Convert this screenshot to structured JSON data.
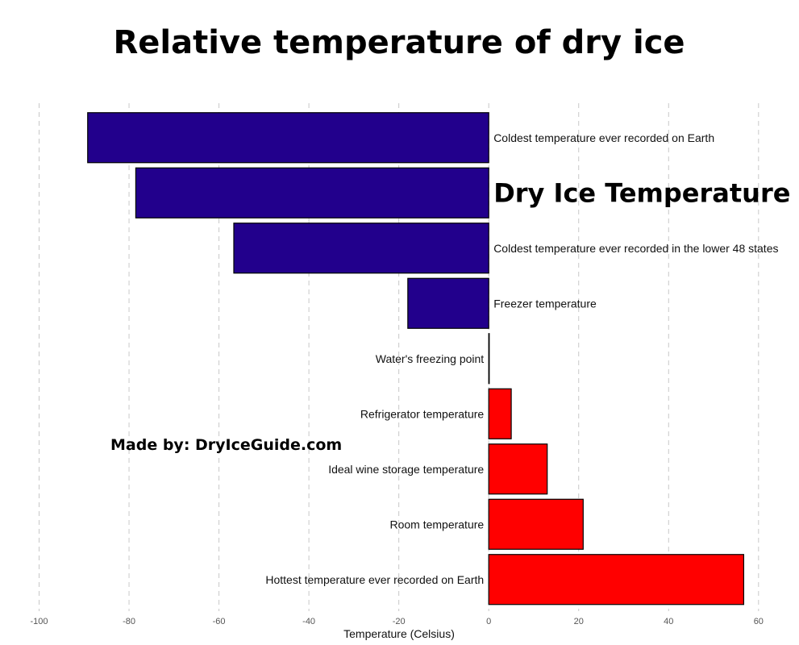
{
  "chart_data": {
    "type": "bar",
    "orientation": "horizontal",
    "title": "Relative temperature of dry ice",
    "xlabel": "Temperature (Celsius)",
    "ylabel": "",
    "xlim": [
      -100,
      62
    ],
    "xticks": [
      -100,
      -80,
      -60,
      -40,
      -20,
      0,
      20,
      40,
      60
    ],
    "grid": "vertical dashed",
    "annotation": "Made by: DryIceGuide.com",
    "colors": {
      "negative": "#22008c",
      "positive": "#ff0000",
      "outline": "#000000"
    },
    "categories": [
      "Coldest temperature ever recorded on Earth",
      "Dry Ice Temperature",
      "Coldest temperature ever recorded in the lower 48 states",
      "Freezer temperature",
      "Water's freezing point",
      "Refrigerator temperature",
      "Ideal wine storage temperature",
      "Room temperature",
      "Hottest temperature ever recorded on Earth"
    ],
    "values": [
      -89.2,
      -78.5,
      -56.7,
      -18,
      0,
      5,
      13,
      21,
      56.7
    ],
    "highlight": "Dry Ice Temperature"
  }
}
